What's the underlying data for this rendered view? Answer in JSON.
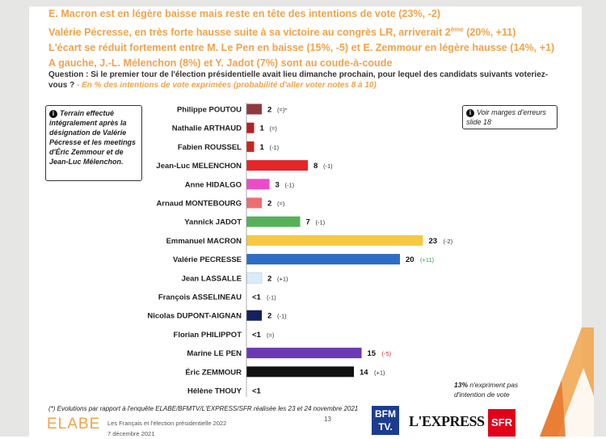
{
  "headline": [
    "E. Macron est en légère baisse mais reste en tête des intentions de vote (23%, -2)",
    "Valérie Pécresse, en très forte hausse suite à sa victoire au congrès LR, arriverait 2ème (20%, +11)",
    "L'écart se réduit fortement entre M. Le Pen en baisse (15%, -5) et E. Zemmour en légère hausse  (14%, +1)",
    "A gauche, J.-L. Mélenchon (8%) et Y. Jadot (7%) sont au coude-à-coude"
  ],
  "question": {
    "text": "Question : Si le premier tour de l'élection présidentielle avait lieu dimanche prochain, pour lequel des candidats suivants voteriez-vous ?",
    "sub": " - En % des intentions de vote exprimées (probabilité d'aller voter notes 8 à 10)"
  },
  "note_left": "Terrain effectué intégralement après la désignation de Valérie Pécresse et les meetings d'Éric Zemmour et de Jean-Luc Mélenchon.",
  "note_right": "Voir marges d'erreurs slide 18",
  "info_icon": "i",
  "abstain_note": {
    "pct": "13%",
    "text": " n'expriment pas d'intention de vote"
  },
  "footnote": "(*) Evolutions par rapport à l'enquête ELABE/BFMTV/L'EXPRESS/SFR réalisée les 23 et 24 novembre 2021",
  "footer": {
    "logo": "ELABE",
    "title": "Les Français et l'élection présidentielle 2022",
    "date": "7 décembre 2021",
    "page": "13",
    "partners": [
      "BFM TV.",
      "L'EXPRESS",
      "SFR"
    ]
  },
  "colors": {
    "headline": "#f0a34a",
    "positive": "#2e9a3e",
    "negative": "#d33232",
    "neutral": "#333333"
  },
  "chart_data": {
    "type": "bar",
    "orientation": "horizontal",
    "unit": "%",
    "xlim": [
      0,
      25
    ],
    "categories": [
      "Philippe POUTOU",
      "Nathalie ARTHAUD",
      "Fabien ROUSSEL",
      "Jean-Luc MELENCHON",
      "Anne HIDALGO",
      "Arnaud MONTEBOURG",
      "Yannick JADOT",
      "Emmanuel MACRON",
      "Valérie PECRESSE",
      "Jean LASSALLE",
      "François ASSELINEAU",
      "Nicolas DUPONT-AIGNAN",
      "Florian PHILIPPOT",
      "Marine LE PEN",
      "Éric ZEMMOUR",
      "Hélène THOUY"
    ],
    "values": [
      2,
      1,
      1,
      8,
      3,
      2,
      7,
      23,
      20,
      2,
      0.5,
      2,
      0.5,
      15,
      14,
      0.5
    ],
    "value_labels": [
      "2",
      "1",
      "1",
      "8",
      "3",
      "2",
      "7",
      "23",
      "20",
      "2",
      "<1",
      "2",
      "<1",
      "15",
      "14",
      "<1"
    ],
    "evolution_labels": [
      "(=)*",
      "(=)",
      "(-1)",
      "(-1)",
      "(-1)",
      "(=)",
      "(-1)",
      "(-2)",
      "(+11)",
      "(+1)",
      "(-1)",
      "(-1)",
      "(=)",
      "(-5)",
      "(+1)",
      ""
    ],
    "evolution_tone": [
      "neutral",
      "neutral",
      "neutral",
      "neutral",
      "neutral",
      "neutral",
      "neutral",
      "neutral",
      "positive",
      "neutral",
      "neutral",
      "neutral",
      "neutral",
      "negative",
      "neutral",
      "neutral"
    ],
    "colors": [
      "#8e3a3e",
      "#b81e26",
      "#c4281f",
      "#e3262a",
      "#ea4cc8",
      "#ec6e72",
      "#56b05a",
      "#f6c843",
      "#2f6cc4",
      "#d9ecf8",
      "#4a4a4a",
      "#15205e",
      "#4a4a4a",
      "#6a3ab2",
      "#111111",
      "#2e8f4e"
    ],
    "show_bar": [
      true,
      true,
      true,
      true,
      true,
      true,
      true,
      true,
      true,
      true,
      false,
      true,
      false,
      true,
      true,
      false
    ]
  }
}
